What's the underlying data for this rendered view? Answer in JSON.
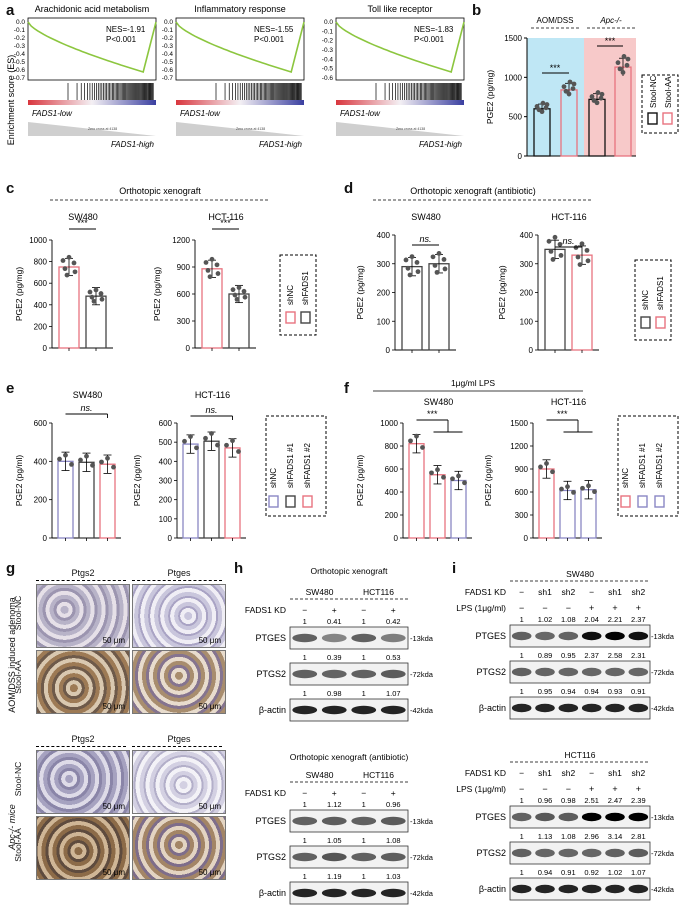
{
  "panels": {
    "a": {
      "letter": "a",
      "gsea": [
        {
          "title": "Arachidonic acid metabolism",
          "nes": "NES=-1.91",
          "p": "P<0.001",
          "low": "FADS1-low",
          "high": "FADS1-high"
        },
        {
          "title": "Inflammatory response",
          "nes": "NES=-1.55",
          "p": "P<0.001",
          "low": "FADS1-low",
          "high": "FADS1-high"
        },
        {
          "title": "Toll like receptor",
          "nes": "NES=-1.83",
          "p": "P<0.001",
          "low": "FADS1-low",
          "high": "FADS1-high"
        }
      ],
      "ylabel": "Enrichment score (ES)",
      "yticks": [
        "0.0",
        "-0.1",
        "-0.2",
        "-0.3",
        "-0.4",
        "-0.5",
        "-0.6",
        "-0.7"
      ],
      "yticks_short": [
        "0.0",
        "-0.1",
        "-0.2",
        "-0.3",
        "-0.4",
        "-0.5",
        "-0.6"
      ],
      "zero_cross": "Zero cross at 4138"
    },
    "b": {
      "letter": "b",
      "groups": [
        "AOM/DSS",
        "Apc-/-"
      ],
      "sig": [
        "***",
        "***"
      ],
      "legend": [
        "Stool-NC",
        "Stool-AA"
      ]
    },
    "c": {
      "letter": "c",
      "title": "Orthotopic xenograft",
      "legend": [
        "shNC",
        "shFADS1"
      ]
    },
    "d": {
      "letter": "d",
      "title": "Orthotopic xenograft (antibiotic)",
      "legend": [
        "shNC",
        "shFADS1"
      ]
    },
    "e": {
      "letter": "e",
      "legend": [
        "shNC",
        "shFADS1 #1",
        "shFADS1 #2"
      ]
    },
    "f": {
      "letter": "f",
      "title": "1μg/ml LPS",
      "legend": [
        "shNC",
        "shFADS1 #1",
        "shFADS1 #2"
      ]
    },
    "g": {
      "letter": "g",
      "headers": [
        "Ptgs2",
        "Ptges"
      ],
      "group1": "AOM/DSS induced adenoma",
      "group2": "Apc-/- mice",
      "rows": [
        "Stool-NC",
        "Stool-AA"
      ],
      "scale": "50 μm"
    },
    "h": {
      "letter": "h",
      "blot1": {
        "title": "Orthotopic xenograft",
        "lines": [
          "SW480",
          "HCT116"
        ],
        "kd_label": "FADS1 KD",
        "kd": [
          "−",
          "+",
          "−",
          "+"
        ],
        "kd_vals": [
          "1",
          "0.41",
          "1",
          "0.42"
        ],
        "rows": [
          {
            "name": "PTGES",
            "size": "-13kda",
            "vals": [
              "1",
              "0.39",
              "1",
              "0.53"
            ]
          },
          {
            "name": "PTGS2",
            "size": "-72kda",
            "vals": [
              "1",
              "0.98",
              "1",
              "1.07"
            ]
          },
          {
            "name": "β-actin",
            "size": "-42kda",
            "vals": []
          }
        ]
      },
      "blot2": {
        "title": "Orthotopic xenograft (antibiotic)",
        "lines": [
          "SW480",
          "HCT116"
        ],
        "kd_label": "FADS1 KD",
        "kd": [
          "−",
          "+",
          "−",
          "+"
        ],
        "kd_vals": [
          "1",
          "1.12",
          "1",
          "0.96"
        ],
        "rows": [
          {
            "name": "PTGES",
            "size": "-13kda",
            "vals": [
              "1",
              "1.05",
              "1",
              "1.08"
            ]
          },
          {
            "name": "PTGS2",
            "size": "-72kda",
            "vals": [
              "1",
              "1.19",
              "1",
              "1.03"
            ]
          },
          {
            "name": "β-actin",
            "size": "-42kda",
            "vals": []
          }
        ]
      }
    },
    "i": {
      "letter": "i",
      "blot1": {
        "line": "SW480",
        "kd_label": "FADS1 KD",
        "lps_label": "LPS (1μg/ml)",
        "kd": [
          "−",
          "sh1",
          "sh2",
          "−",
          "sh1",
          "sh2"
        ],
        "lps": [
          "−",
          "−",
          "−",
          "+",
          "+",
          "+"
        ],
        "kd_vals": [
          "1",
          "1.02",
          "1.08",
          "2.04",
          "2.21",
          "2.37"
        ],
        "rows": [
          {
            "name": "PTGES",
            "size": "-13kda",
            "vals": [
              "1",
              "0.89",
              "0.95",
              "2.37",
              "2.58",
              "2.31"
            ]
          },
          {
            "name": "PTGS2",
            "size": "-72kda",
            "vals": [
              "1",
              "0.95",
              "0.94",
              "0.94",
              "0.93",
              "0.91"
            ]
          },
          {
            "name": "β-actin",
            "size": "-42kda",
            "vals": []
          }
        ]
      },
      "blot2": {
        "line": "HCT116",
        "kd_label": "FADS1 KD",
        "lps_label": "LPS (1μg/ml)",
        "kd": [
          "−",
          "sh1",
          "sh2",
          "−",
          "sh1",
          "sh2"
        ],
        "lps": [
          "−",
          "−",
          "−",
          "+",
          "+",
          "+"
        ],
        "kd_vals": [
          "1",
          "0.96",
          "0.98",
          "2.51",
          "2.47",
          "2.39"
        ],
        "rows": [
          {
            "name": "PTGES",
            "size": "-13kda",
            "vals": [
              "1",
              "1.13",
              "1.08",
              "2.96",
              "3.14",
              "2.81"
            ]
          },
          {
            "name": "PTGS2",
            "size": "-72kda",
            "vals": [
              "1",
              "0.94",
              "0.91",
              "0.92",
              "1.02",
              "1.07"
            ]
          },
          {
            "name": "β-actin",
            "size": "-42kda",
            "vals": []
          }
        ]
      }
    }
  },
  "colors": {
    "nc": "#111111",
    "aa": "#e8737f",
    "shnc_c": "#e8737f",
    "shfads_c": "#444444",
    "blue_bg": "#bfe7f5",
    "pink_bg": "#f7c9c9",
    "green": "#8cc63f",
    "purple": "#8a87c4"
  },
  "chart_data": [
    {
      "id": "b",
      "type": "bar",
      "ylabel": "PGE2 (pg/mg)",
      "ylim": [
        0,
        1500
      ],
      "categories": [
        "AOM/DSS Stool-NC",
        "AOM/DSS Stool-AA",
        "Apc-/- Stool-NC",
        "Apc-/- Stool-AA"
      ],
      "series": [
        {
          "values": [
            600,
            840,
            720,
            1130
          ]
        }
      ]
    },
    {
      "id": "c1",
      "type": "bar",
      "title": "SW480",
      "ylabel": "PGE2 (pg/mg)",
      "ylim": [
        0,
        1000
      ],
      "yticks": [
        0,
        200,
        400,
        600,
        800,
        1000
      ],
      "categories": [
        "shNC",
        "shFADS1"
      ],
      "series": [
        {
          "values": [
            750,
            480
          ]
        }
      ],
      "sig": "***"
    },
    {
      "id": "c2",
      "type": "bar",
      "title": "HCT-116",
      "ylabel": "PGE2 (pg/mg)",
      "ylim": [
        0,
        1200
      ],
      "yticks": [
        0,
        300,
        600,
        900,
        1200
      ],
      "categories": [
        "shNC",
        "shFADS1"
      ],
      "series": [
        {
          "values": [
            880,
            600
          ]
        }
      ],
      "sig": "***"
    },
    {
      "id": "d1",
      "type": "bar",
      "title": "SW480",
      "ylabel": "PGE2 (pg/mg)",
      "ylim": [
        0,
        400
      ],
      "yticks": [
        0,
        100,
        200,
        300,
        400
      ],
      "categories": [
        "shNC",
        "shFADS1"
      ],
      "series": [
        {
          "values": [
            290,
            300
          ]
        }
      ],
      "sig": "ns."
    },
    {
      "id": "d2",
      "type": "bar",
      "title": "HCT-116",
      "ylabel": "PGE2 (pg/mg)",
      "ylim": [
        0,
        400
      ],
      "yticks": [
        0,
        100,
        200,
        300,
        400
      ],
      "categories": [
        "shNC",
        "shFADS1"
      ],
      "series": [
        {
          "values": [
            350,
            330
          ]
        }
      ],
      "sig": "ns."
    },
    {
      "id": "e1",
      "type": "bar",
      "title": "SW480",
      "ylabel": "PGE2 (pg/ml)",
      "ylim": [
        0,
        600
      ],
      "yticks": [
        0,
        200,
        400,
        600
      ],
      "categories": [
        "shNC",
        "shFADS1 #1",
        "shFADS1 #2"
      ],
      "series": [
        {
          "values": [
            400,
            395,
            385
          ]
        }
      ],
      "sig": "ns."
    },
    {
      "id": "e2",
      "type": "bar",
      "title": "HCT-116",
      "ylabel": "PGE2 (pg/ml)",
      "ylim": [
        0,
        600
      ],
      "yticks": [
        0,
        100,
        200,
        300,
        400,
        500,
        600
      ],
      "categories": [
        "shNC",
        "shFADS1 #1",
        "shFADS1 #2"
      ],
      "series": [
        {
          "values": [
            490,
            505,
            470
          ]
        }
      ],
      "sig": "ns."
    },
    {
      "id": "f1",
      "type": "bar",
      "title": "SW480",
      "ylabel": "PGE2 (pg/ml)",
      "ylim": [
        0,
        1000
      ],
      "yticks": [
        0,
        200,
        400,
        600,
        800,
        1000
      ],
      "categories": [
        "shNC",
        "shFADS1 #1",
        "shFADS1 #2"
      ],
      "series": [
        {
          "values": [
            820,
            550,
            500
          ]
        }
      ],
      "sig": "***"
    },
    {
      "id": "f2",
      "type": "bar",
      "title": "HCT-116",
      "ylabel": "PGE2 (pg/ml)",
      "ylim": [
        0,
        1500
      ],
      "yticks": [
        0,
        300,
        600,
        900,
        1200,
        1500
      ],
      "categories": [
        "shNC",
        "shFADS1 #1",
        "shFADS1 #2"
      ],
      "series": [
        {
          "values": [
            900,
            620,
            630
          ]
        }
      ],
      "sig": "***"
    }
  ]
}
